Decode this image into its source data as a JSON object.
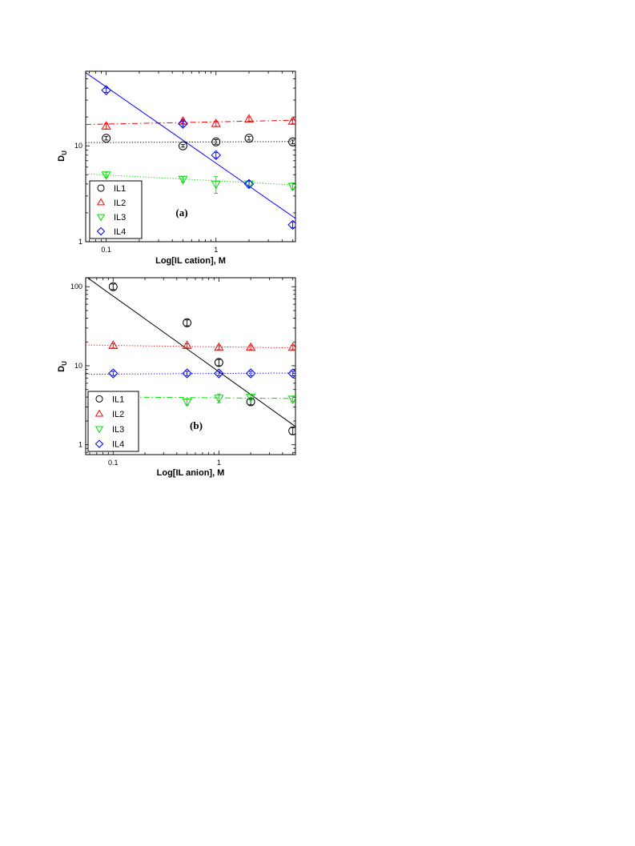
{
  "chart_data": [
    {
      "type": "scatter",
      "panel_label": "(a)",
      "xlabel": "Log[IL cation], M",
      "ylabel_main": "D",
      "ylabel_sub": "U",
      "x_scale": "log",
      "y_scale": "log",
      "xlim": [
        0.065,
        5.3
      ],
      "ylim": [
        1,
        60
      ],
      "x_ticks": [
        0.1,
        1
      ],
      "x_tick_labels": [
        "0.1",
        "1"
      ],
      "y_ticks": [
        1,
        10
      ],
      "y_tick_labels": [
        "1",
        "10"
      ],
      "grid": false,
      "legend_position": "bottom-left",
      "series": [
        {
          "name": "IL1",
          "marker": "circle",
          "color": "#000000",
          "x": [
            0.1,
            0.5,
            1,
            2,
            5
          ],
          "y": [
            12,
            10,
            11,
            12,
            11
          ],
          "yerr": [
            0.5,
            0.3,
            0.6,
            0.5,
            0.5
          ],
          "fit": {
            "style": "dotted",
            "color": "#000000",
            "y_start": 10.8,
            "y_end": 11.1
          }
        },
        {
          "name": "IL2",
          "marker": "triangle-up",
          "color": "#ff0000",
          "x": [
            0.1,
            0.5,
            1,
            2,
            5
          ],
          "y": [
            16,
            18,
            17,
            19,
            18
          ],
          "yerr": [
            1,
            1,
            1,
            1,
            1
          ],
          "fit": {
            "style": "dashdot",
            "color": "#ff0000",
            "y_start": 16.7,
            "y_end": 18.5
          }
        },
        {
          "name": "IL3",
          "marker": "triangle-down",
          "color": "#00dd00",
          "x": [
            0.1,
            0.5,
            1,
            2,
            5
          ],
          "y": [
            5,
            4.5,
            4,
            4,
            3.8
          ],
          "yerr": [
            0.3,
            0.3,
            0.8,
            0.3,
            0.3
          ],
          "fit": {
            "style": "dotted",
            "color": "#00dd00",
            "y_start": 5.1,
            "y_end": 3.9
          }
        },
        {
          "name": "IL4",
          "marker": "diamond",
          "color": "#0000ff",
          "x": [
            0.1,
            0.5,
            1,
            2,
            5
          ],
          "y": [
            38,
            17,
            8,
            4,
            1.5
          ],
          "yerr": [
            2,
            1,
            0.5,
            0.3,
            0.1
          ],
          "fit": {
            "style": "solid",
            "color": "#0000ff",
            "y_start": 58,
            "y_end": 1.75
          }
        }
      ]
    },
    {
      "type": "scatter",
      "panel_label": "(b)",
      "xlabel": "Log[IL anion], M",
      "ylabel_main": "D",
      "ylabel_sub": "U",
      "x_scale": "log",
      "y_scale": "log",
      "xlim": [
        0.055,
        5.3
      ],
      "ylim": [
        0.75,
        130
      ],
      "x_ticks": [
        0.1,
        1
      ],
      "x_tick_labels": [
        "0.1",
        "1"
      ],
      "y_ticks": [
        1,
        10,
        100
      ],
      "y_tick_labels": [
        "1",
        "10",
        "100"
      ],
      "grid": false,
      "legend_position": "bottom-left",
      "series": [
        {
          "name": "IL1",
          "marker": "circle",
          "color": "#000000",
          "x": [
            0.1,
            0.5,
            1,
            2,
            5
          ],
          "y": [
            100,
            35,
            11,
            3.5,
            1.5
          ],
          "yerr": [
            8,
            3,
            1,
            0.3,
            0.15
          ],
          "fit": {
            "style": "solid",
            "color": "#000000",
            "y_start": 135,
            "y_end": 1.7
          }
        },
        {
          "name": "IL2",
          "marker": "triangle-up",
          "color": "#ff0000",
          "x": [
            0.1,
            0.5,
            1,
            2,
            5
          ],
          "y": [
            18,
            18,
            17,
            17,
            17
          ],
          "yerr": [
            1,
            1,
            1,
            1,
            1
          ],
          "fit": {
            "style": "dotted",
            "color": "#ff0000",
            "y_start": 18.3,
            "y_end": 16.8
          }
        },
        {
          "name": "IL3",
          "marker": "triangle-down",
          "color": "#00dd00",
          "x": [
            0.1,
            0.5,
            1,
            2,
            5
          ],
          "y": [
            4,
            3.5,
            3.9,
            4,
            3.8
          ],
          "yerr": [
            0.3,
            0.3,
            0.5,
            0.3,
            0.3
          ],
          "fit": {
            "style": "dashdot",
            "color": "#00dd00",
            "y_start": 4.05,
            "y_end": 3.85
          }
        },
        {
          "name": "IL4",
          "marker": "diamond",
          "color": "#0000ff",
          "x": [
            0.1,
            0.5,
            1,
            2,
            5
          ],
          "y": [
            8,
            8,
            8,
            8,
            8
          ],
          "yerr": [
            0.5,
            0.5,
            0.5,
            0.5,
            0.5
          ],
          "fit": {
            "style": "dotted",
            "color": "#0000ff",
            "y_start": 7.8,
            "y_end": 8.1
          }
        }
      ]
    }
  ]
}
